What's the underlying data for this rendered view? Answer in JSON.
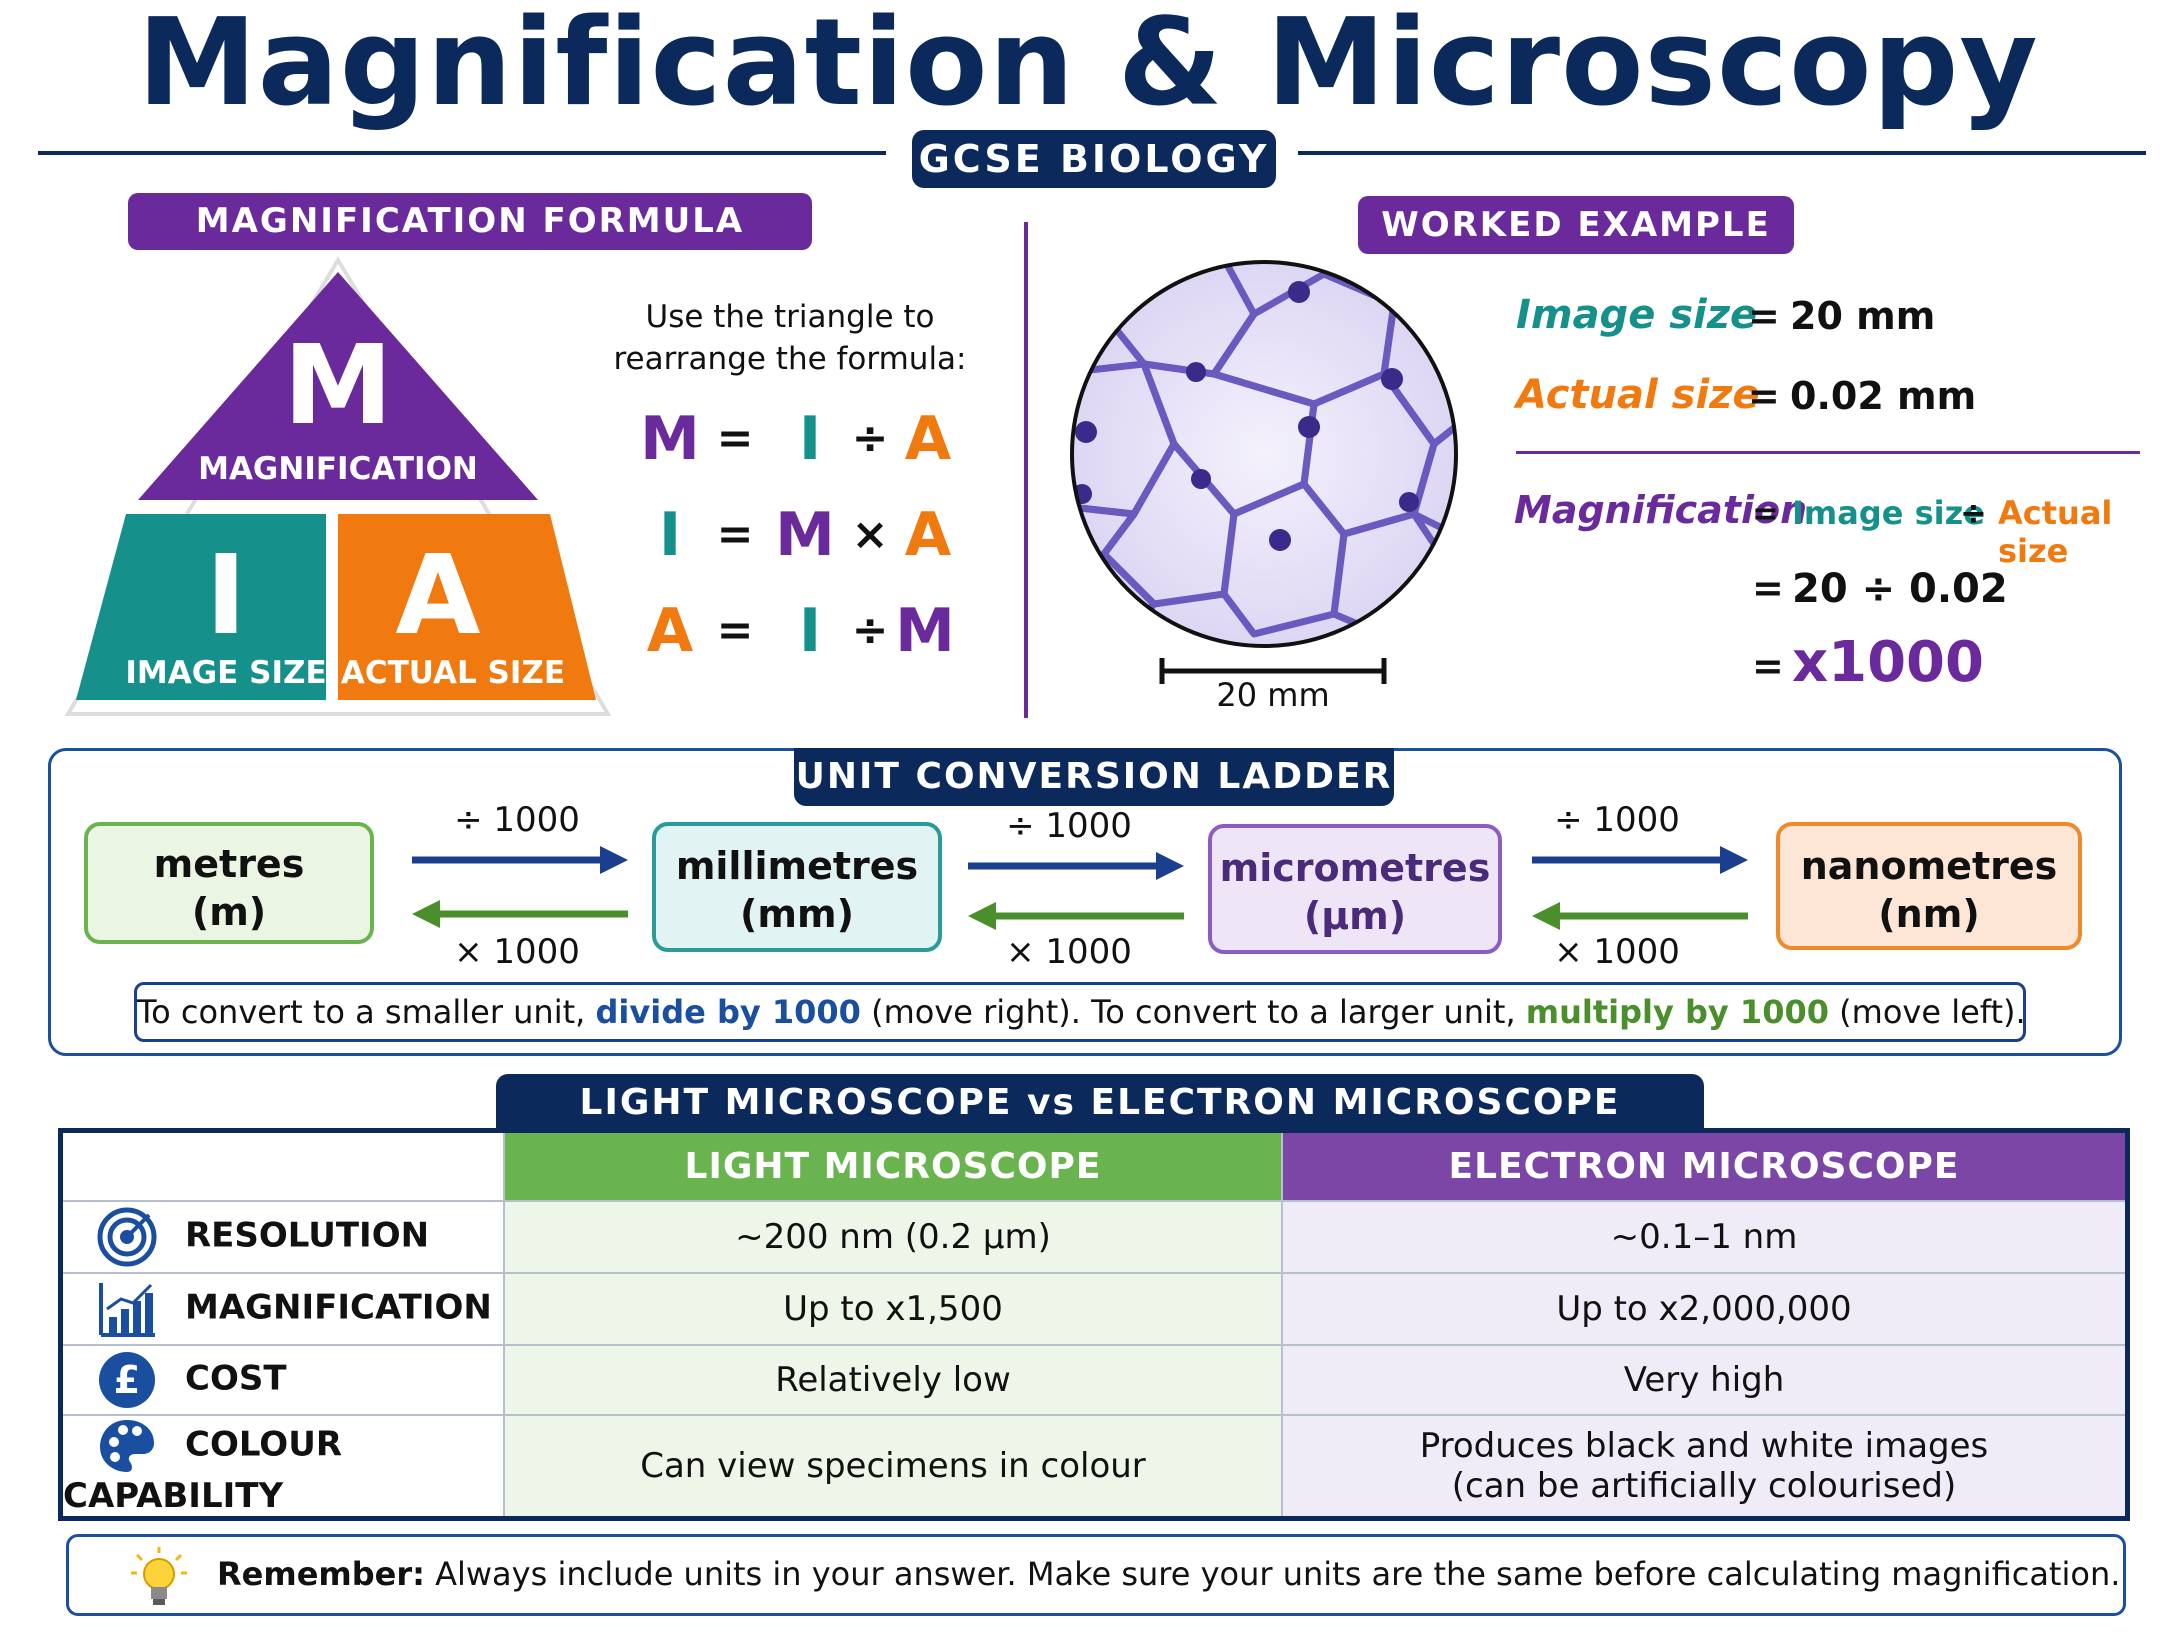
{
  "header": {
    "title": "Magnification & Microscopy",
    "badge": "GCSE BIOLOGY"
  },
  "formula": {
    "heading": "MAGNIFICATION FORMULA",
    "triangle": {
      "m_letter": "M",
      "m_label": "MAGNIFICATION",
      "i_letter": "I",
      "i_label": "IMAGE SIZE",
      "a_letter": "A",
      "a_label": "ACTUAL SIZE"
    },
    "instruction_line1": "Use the triangle to",
    "instruction_line2": "rearrange the formula:",
    "rows": [
      {
        "a": "M",
        "eq": "=",
        "b": "I",
        "op": "÷",
        "c": "A"
      },
      {
        "a": "I",
        "eq": "=",
        "b": "M",
        "op": "×",
        "c": "A"
      },
      {
        "a": "A",
        "eq": "=",
        "b": "I",
        "op": "÷",
        "c": "M"
      }
    ]
  },
  "worked_example": {
    "heading": "WORKED EXAMPLE",
    "scale_label": "20 mm",
    "image_size_label": "Image size",
    "image_size_value": "20 mm",
    "actual_size_label": "Actual size",
    "actual_size_value": "0.02 mm",
    "eq_sign": "=",
    "mag_label": "Magnification",
    "mag_image_size": "Image size",
    "mag_op": "÷",
    "mag_actual_size": "Actual size",
    "step1": "20 ÷ 0.02",
    "result": "x1000"
  },
  "ladder": {
    "heading": "UNIT CONVERSION LADDER",
    "units": [
      {
        "name": "metres",
        "symbol": "(m)",
        "bg": "#eaf5e4",
        "border": "#6ab44f"
      },
      {
        "name": "millimetres",
        "symbol": "(mm)",
        "bg": "#e2f3f3",
        "border": "#2a9a9a"
      },
      {
        "name": "micrometres",
        "symbol": "(µm)",
        "bg": "#eee6f7",
        "border": "#8b5cc4"
      },
      {
        "name": "nanometres",
        "symbol": "(nm)",
        "bg": "#fde6d6",
        "border": "#f0892a"
      }
    ],
    "divide_label": "÷ 1000",
    "multiply_label": "× 1000",
    "note_1": "To convert to a smaller unit,",
    "note_divide": "divide by 1000",
    "note_2": "(move right).   To convert to a larger unit,",
    "note_multiply": "multiply by 1000",
    "note_3": "(move left)."
  },
  "comparison": {
    "heading": "LIGHT MICROSCOPE vs ELECTRON MICROSCOPE",
    "col_light": "LIGHT MICROSCOPE",
    "col_electron": "ELECTRON MICROSCOPE",
    "rows": [
      {
        "icon": "target-icon",
        "label": "RESOLUTION",
        "light": "~200 nm (0.2 µm)",
        "electron": "~0.1–1 nm",
        "electron2": ""
      },
      {
        "icon": "bar-chart-icon",
        "label": "MAGNIFICATION",
        "light": "Up to x1,500",
        "electron": "Up to x2,000,000",
        "electron2": ""
      },
      {
        "icon": "pound-icon",
        "label": "COST",
        "light": "Relatively low",
        "electron": "Very high",
        "electron2": ""
      },
      {
        "icon": "palette-icon",
        "label": "COLOUR CAPABILITY",
        "light": "Can view specimens in colour",
        "electron": "Produces black and white images",
        "electron2": "(can be artificially colourised)"
      }
    ]
  },
  "reminder": {
    "icon": "lightbulb-icon",
    "bold": "Remember:",
    "text": "Always include units in your answer.   Make sure your units are the same before calculating magnification."
  }
}
